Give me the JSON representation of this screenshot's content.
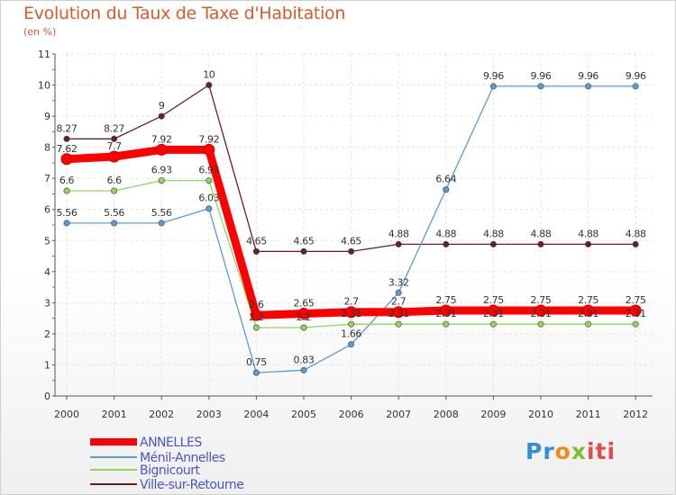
{
  "chart_data": {
    "type": "line",
    "title": "Evolution du Taux de Taxe d'Habitation",
    "subtitle": "(en %)",
    "x": [
      "2000",
      "2001",
      "2002",
      "2003",
      "2004",
      "2005",
      "2006",
      "2007",
      "2008",
      "2009",
      "2010",
      "2011",
      "2012"
    ],
    "ylim": [
      0,
      11
    ],
    "yticks": [
      0,
      1,
      2,
      3,
      4,
      5,
      6,
      7,
      8,
      9,
      10,
      11
    ],
    "series": [
      {
        "name": "Ville-sur-Retourne",
        "color": "#6b1e22",
        "values": [
          8.27,
          8.27,
          9,
          10,
          4.65,
          4.65,
          4.65,
          4.88,
          4.88,
          4.88,
          4.88,
          4.88,
          4.88
        ],
        "labels": [
          "8.27",
          "8.27",
          "9",
          "10",
          "4.65",
          "4.65",
          "4.65",
          "4.88",
          "4.88",
          "4.88",
          "4.88",
          "4.88",
          "4.88"
        ]
      },
      {
        "name": "Ménil-Annelles",
        "color": "#5b9bd5",
        "values": [
          5.56,
          5.56,
          5.56,
          6.03,
          0.75,
          0.83,
          1.66,
          3.32,
          6.64,
          9.96,
          9.96,
          9.96,
          9.96
        ],
        "labels": [
          "5.56",
          "5.56",
          "5.56",
          "6.03",
          "0.75",
          "0.83",
          "1.66",
          "3.32",
          "6.64",
          "9.96",
          "9.96",
          "9.96",
          "9.96"
        ]
      },
      {
        "name": "Bignicourt",
        "color": "#8fd65a",
        "values": [
          6.6,
          6.6,
          6.93,
          6.93,
          2.2,
          2.2,
          2.31,
          2.31,
          2.31,
          2.31,
          2.31,
          2.31,
          2.31
        ],
        "labels": [
          "6.6",
          "6.6",
          "6.93",
          "6.93",
          "2.2",
          "2.2",
          "2.31",
          "2.31",
          "2.31",
          "2.31",
          "2.31",
          "2.31",
          "2.31"
        ]
      },
      {
        "name": "ANNELLES",
        "color": "#ff0000",
        "values": [
          7.62,
          7.7,
          7.92,
          7.92,
          2.6,
          2.65,
          2.7,
          2.7,
          2.75,
          2.75,
          2.75,
          2.75,
          2.75
        ],
        "labels": [
          "7.62",
          "7.7",
          "7.92",
          "7.92",
          "2.6",
          "2.65",
          "2.7",
          "2.7",
          "2.75",
          "2.75",
          "2.75",
          "2.75",
          "2.75"
        ]
      }
    ],
    "legend": [
      "ANNELLES",
      "Ménil-Annelles",
      "Bignicourt",
      "Ville-sur-Retourne"
    ],
    "legend_position": "bottom-left"
  },
  "brand": {
    "p1": "Pr",
    "p2": "o",
    "p3": "x",
    "p4": "iti"
  }
}
